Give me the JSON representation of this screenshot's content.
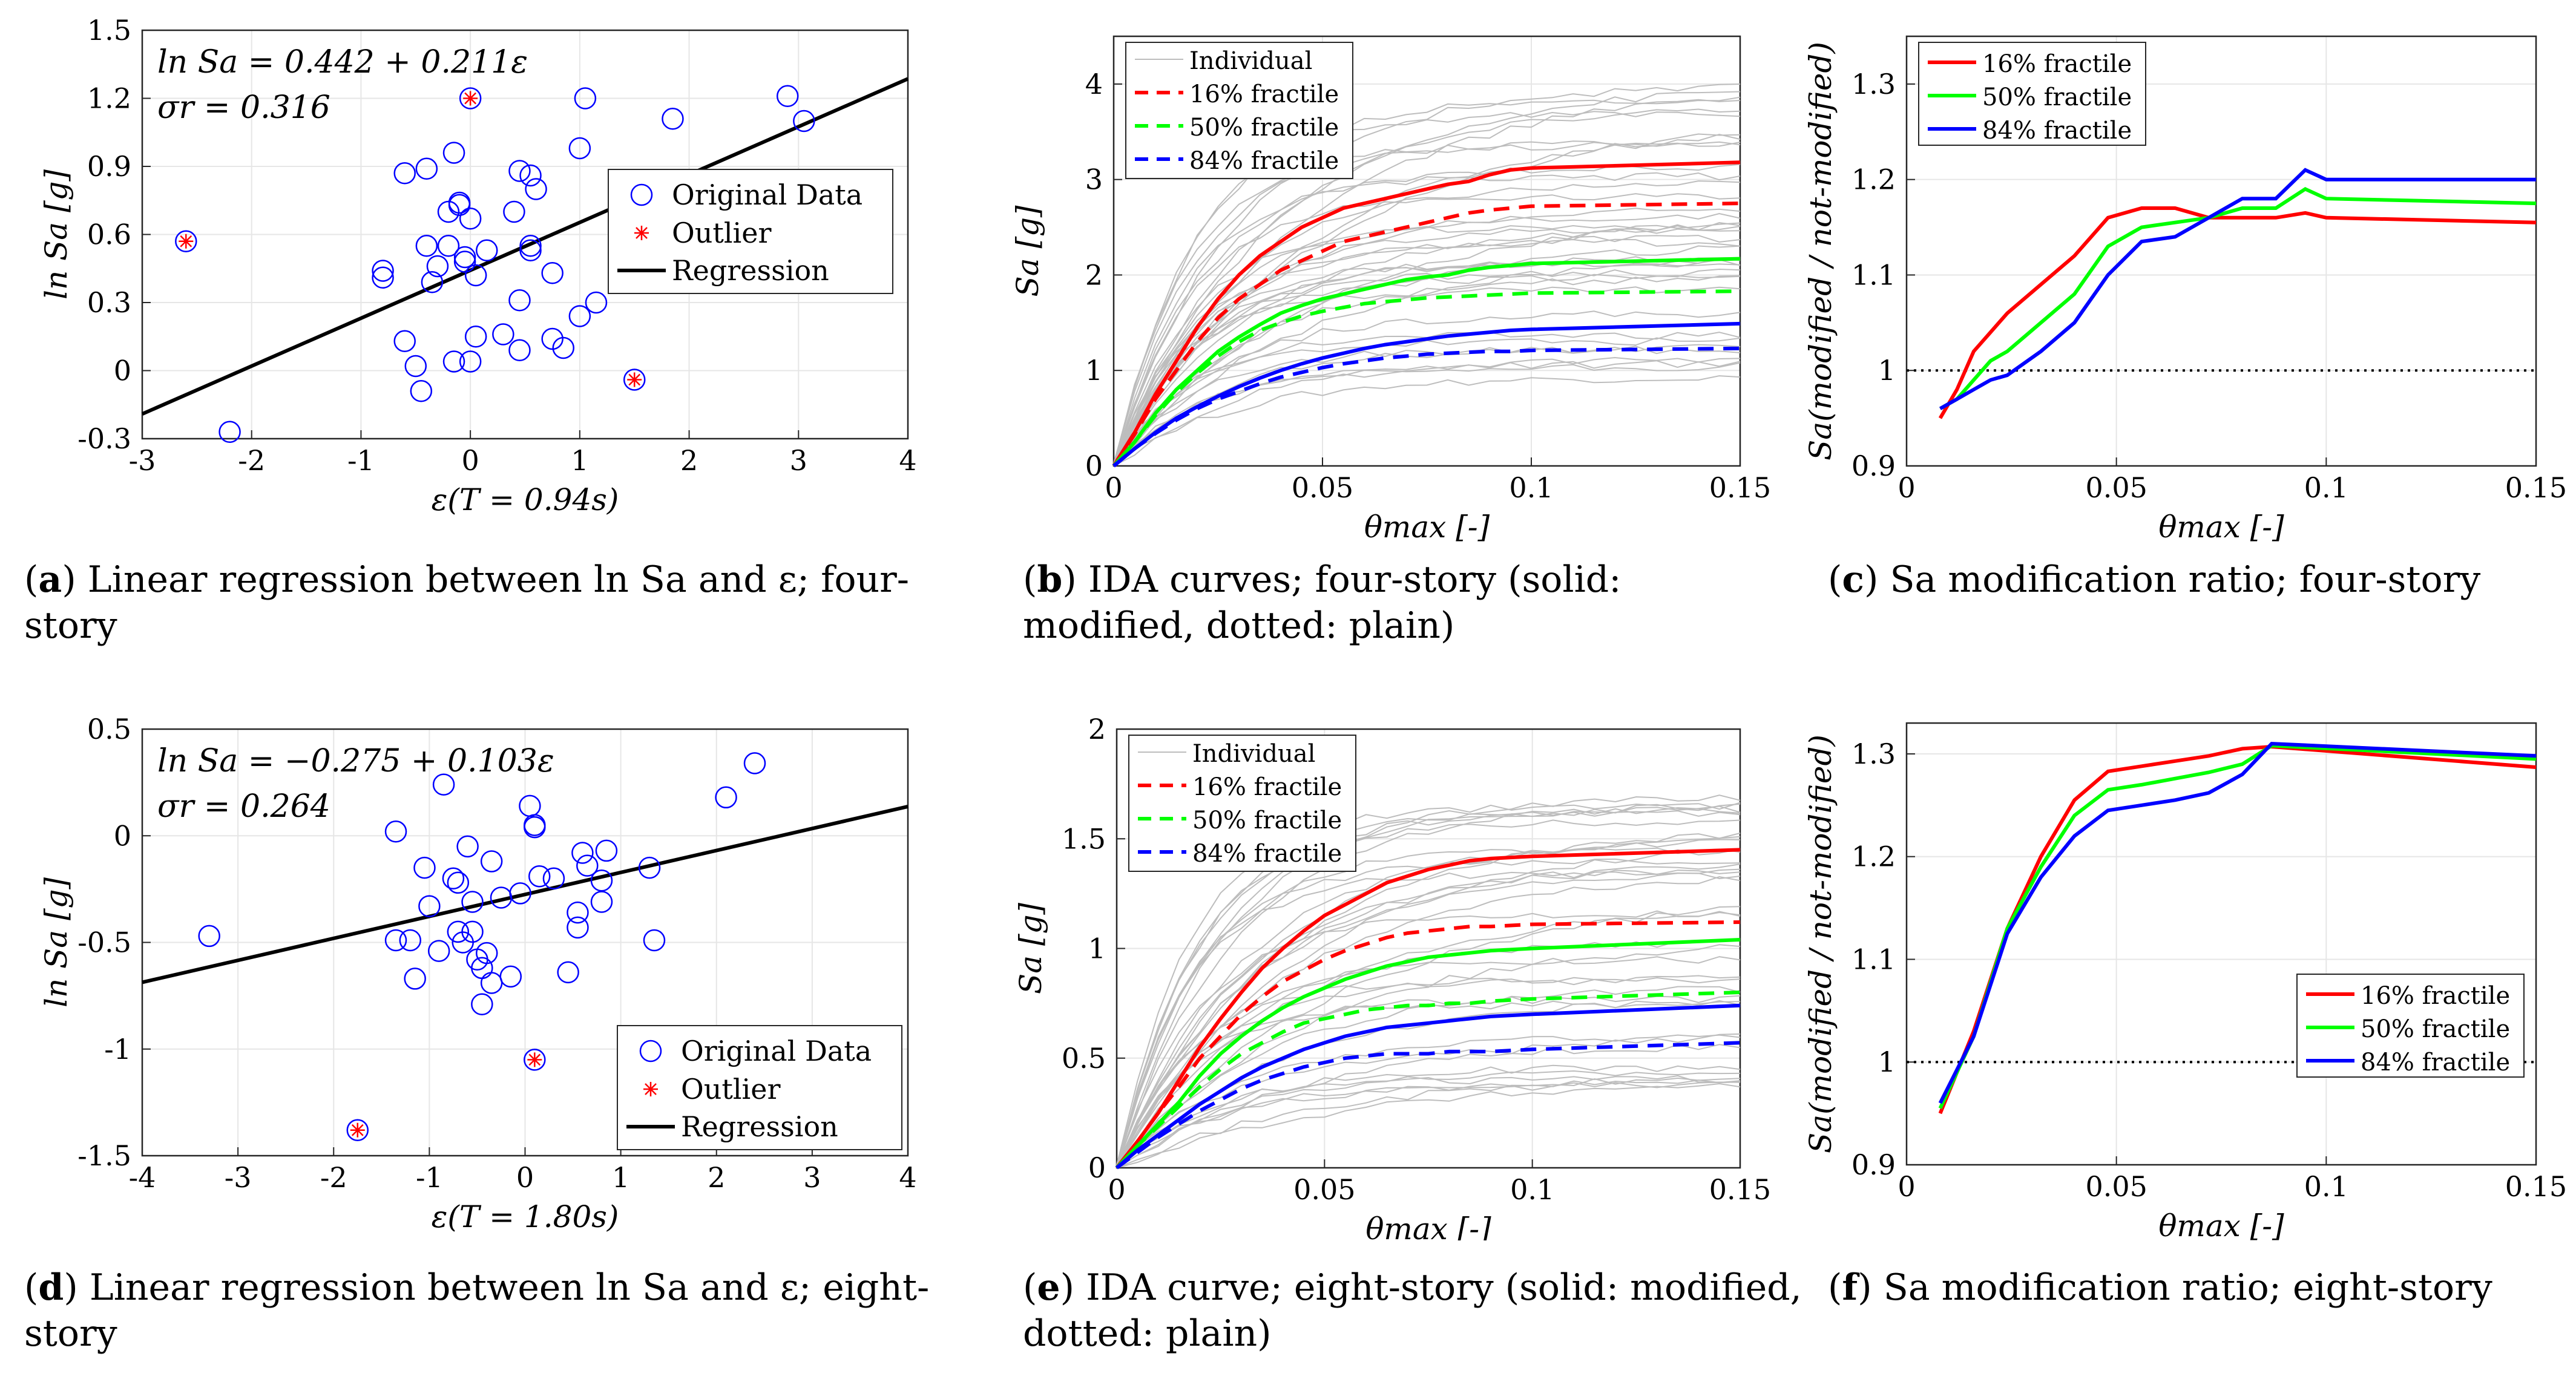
{
  "chart_data": [
    {
      "id": "a",
      "type": "scatter",
      "caption_letter": "a",
      "caption_text": "Linear regression between ln Sa and ε; four-story",
      "xlabel": "ε(T = 0.94s)",
      "ylabel": "ln Sa  [g]",
      "xlim": [
        -3,
        4
      ],
      "ylim": [
        -0.3,
        1.5
      ],
      "xticks": [
        "-3",
        "-2",
        "-1",
        "0",
        "1",
        "2",
        "3",
        "4"
      ],
      "yticks": [
        "-0.3",
        "0",
        "0.3",
        "0.6",
        "0.9",
        "1.2",
        "1.5"
      ],
      "annotations": [
        "ln Sa = 0.442 + 0.211ε",
        "σr = 0.316"
      ],
      "legend": [
        "Original Data",
        "Outlier",
        "Regression"
      ],
      "legend_position": "right",
      "regression": {
        "intercept": 0.442,
        "slope": 0.211
      },
      "points": [
        [
          -2.6,
          0.57
        ],
        [
          -2.2,
          -0.27
        ],
        [
          -0.8,
          0.44
        ],
        [
          -0.8,
          0.41
        ],
        [
          -0.6,
          0.87
        ],
        [
          -0.6,
          0.13
        ],
        [
          -0.5,
          0.02
        ],
        [
          -0.45,
          -0.09
        ],
        [
          -0.4,
          0.89
        ],
        [
          -0.4,
          0.55
        ],
        [
          -0.35,
          0.39
        ],
        [
          -0.3,
          0.46
        ],
        [
          -0.2,
          0.7
        ],
        [
          -0.2,
          0.55
        ],
        [
          -0.15,
          0.04
        ],
        [
          -0.15,
          0.96
        ],
        [
          -0.1,
          0.73
        ],
        [
          -0.1,
          0.74
        ],
        [
          -0.05,
          0.5
        ],
        [
          -0.05,
          0.48
        ],
        [
          0,
          0.67
        ],
        [
          0,
          0.04
        ],
        [
          0.05,
          0.42
        ],
        [
          0.05,
          0.15
        ],
        [
          0.15,
          0.53
        ],
        [
          0.3,
          0.16
        ],
        [
          0.4,
          0.7
        ],
        [
          0.45,
          0.88
        ],
        [
          0.45,
          0.31
        ],
        [
          0.45,
          0.09
        ],
        [
          0.55,
          0.55
        ],
        [
          0.55,
          0.53
        ],
        [
          0.55,
          0.86
        ],
        [
          0.6,
          0.8
        ],
        [
          0.75,
          0.43
        ],
        [
          0.75,
          0.14
        ],
        [
          0.85,
          0.1
        ],
        [
          1.0,
          0.98
        ],
        [
          1.05,
          1.2
        ],
        [
          1.15,
          0.3
        ],
        [
          1.85,
          1.11
        ],
        [
          2.9,
          1.21
        ],
        [
          3.05,
          1.1
        ],
        [
          1.0,
          0.24
        ],
        [
          0,
          1.2
        ],
        [
          1.5,
          -0.04
        ]
      ],
      "outliers": [
        [
          -2.6,
          0.57
        ],
        [
          0,
          1.2
        ],
        [
          1.5,
          -0.04
        ]
      ]
    },
    {
      "id": "b",
      "type": "line",
      "caption_letter": "b",
      "caption_text": "IDA curves; four-story (solid: modified, dotted: plain)",
      "xlabel": "θmax [-]",
      "ylabel": "Sa  [g]",
      "xlim": [
        0,
        0.15
      ],
      "ylim": [
        0,
        4.5
      ],
      "xticks": [
        "0",
        "0.05",
        "0.1",
        "0.15"
      ],
      "yticks": [
        "0",
        "1",
        "2",
        "3",
        "4"
      ],
      "legend": [
        "Individual",
        "16% fractile",
        "50% fractile",
        "84% fractile"
      ],
      "legend_position": "top-left",
      "x": [
        0,
        0.005,
        0.01,
        0.015,
        0.02,
        0.025,
        0.03,
        0.035,
        0.04,
        0.045,
        0.05,
        0.055,
        0.06,
        0.065,
        0.07,
        0.075,
        0.08,
        0.085,
        0.09,
        0.095,
        0.1,
        0.15
      ],
      "series": [
        {
          "name": "16% fractile",
          "style": "solid",
          "color": "#ff0000",
          "values": [
            0,
            0.35,
            0.75,
            1.1,
            1.45,
            1.75,
            2.0,
            2.2,
            2.35,
            2.5,
            2.6,
            2.7,
            2.75,
            2.8,
            2.85,
            2.9,
            2.95,
            2.98,
            3.05,
            3.1,
            3.12,
            3.18
          ]
        },
        {
          "name": "16% fractile",
          "style": "dashed",
          "color": "#ff0000",
          "values": [
            0,
            0.33,
            0.7,
            1.0,
            1.3,
            1.55,
            1.75,
            1.9,
            2.05,
            2.15,
            2.25,
            2.35,
            2.4,
            2.45,
            2.5,
            2.55,
            2.6,
            2.65,
            2.68,
            2.7,
            2.72,
            2.75
          ]
        },
        {
          "name": "50% fractile",
          "style": "solid",
          "color": "#00ff00",
          "values": [
            0,
            0.25,
            0.55,
            0.8,
            1.0,
            1.2,
            1.35,
            1.48,
            1.6,
            1.68,
            1.75,
            1.8,
            1.85,
            1.9,
            1.95,
            1.98,
            2.0,
            2.05,
            2.08,
            2.1,
            2.12,
            2.17
          ]
        },
        {
          "name": "50% fractile",
          "style": "dashed",
          "color": "#00ff00",
          "values": [
            0,
            0.25,
            0.53,
            0.77,
            0.97,
            1.15,
            1.3,
            1.42,
            1.5,
            1.57,
            1.62,
            1.66,
            1.7,
            1.72,
            1.74,
            1.76,
            1.77,
            1.78,
            1.79,
            1.8,
            1.81,
            1.83
          ]
        },
        {
          "name": "84% fractile",
          "style": "solid",
          "color": "#0000ff",
          "values": [
            0,
            0.18,
            0.35,
            0.5,
            0.62,
            0.73,
            0.83,
            0.92,
            1.0,
            1.07,
            1.13,
            1.18,
            1.23,
            1.27,
            1.3,
            1.33,
            1.36,
            1.38,
            1.4,
            1.42,
            1.43,
            1.49
          ]
        },
        {
          "name": "84% fractile",
          "style": "dashed",
          "color": "#0000ff",
          "values": [
            0,
            0.18,
            0.34,
            0.48,
            0.6,
            0.7,
            0.78,
            0.86,
            0.93,
            0.98,
            1.03,
            1.07,
            1.1,
            1.13,
            1.15,
            1.17,
            1.18,
            1.19,
            1.2,
            1.2,
            1.21,
            1.23
          ]
        }
      ]
    },
    {
      "id": "c",
      "type": "line",
      "caption_letter": "c",
      "caption_text": "Sa modification ratio; four-story",
      "xlabel": "θmax [-]",
      "ylabel": "Sa(modified / not-modified)",
      "xlim": [
        0,
        0.15
      ],
      "ylim": [
        0.9,
        1.35
      ],
      "xticks": [
        "0",
        "0.05",
        "0.1",
        "0.15"
      ],
      "yticks": [
        "0.9",
        "1",
        "1.1",
        "1.2",
        "1.3"
      ],
      "reference_line": 1,
      "legend": [
        "16% fractile",
        "50% fractile",
        "84% fractile"
      ],
      "legend_position": "top-left",
      "x": [
        0.008,
        0.012,
        0.016,
        0.02,
        0.024,
        0.032,
        0.04,
        0.048,
        0.056,
        0.064,
        0.072,
        0.08,
        0.088,
        0.095,
        0.1,
        0.15
      ],
      "series": [
        {
          "name": "16% fractile",
          "color": "#ff0000",
          "values": [
            0.95,
            0.98,
            1.02,
            1.04,
            1.06,
            1.09,
            1.12,
            1.16,
            1.17,
            1.17,
            1.16,
            1.16,
            1.16,
            1.165,
            1.16,
            1.155
          ]
        },
        {
          "name": "50% fractile",
          "color": "#00ff00",
          "values": [
            0.96,
            0.97,
            0.99,
            1.01,
            1.02,
            1.05,
            1.08,
            1.13,
            1.15,
            1.155,
            1.16,
            1.17,
            1.17,
            1.19,
            1.18,
            1.175
          ]
        },
        {
          "name": "84% fractile",
          "color": "#0000ff",
          "values": [
            0.96,
            0.97,
            0.98,
            0.99,
            0.995,
            1.02,
            1.05,
            1.1,
            1.135,
            1.14,
            1.16,
            1.18,
            1.18,
            1.21,
            1.2,
            1.2
          ]
        }
      ]
    },
    {
      "id": "d",
      "type": "scatter",
      "caption_letter": "d",
      "caption_text": "Linear regression between ln Sa and ε; eight-story",
      "xlabel": "ε(T = 1.80s)",
      "ylabel": "ln Sa  [g]",
      "xlim": [
        -4,
        4
      ],
      "ylim": [
        -1.5,
        0.5
      ],
      "xticks": [
        "-4",
        "-3",
        "-2",
        "-1",
        "0",
        "1",
        "2",
        "3",
        "4"
      ],
      "yticks": [
        "-1.5",
        "-1",
        "-0.5",
        "0",
        "0.5"
      ],
      "annotations": [
        "ln Sa = −0.275 + 0.103ε",
        "σr = 0.264"
      ],
      "legend": [
        "Original Data",
        "Outlier",
        "Regression"
      ],
      "legend_position": "bottom-right",
      "regression": {
        "intercept": -0.275,
        "slope": 0.103
      },
      "points": [
        [
          -3.3,
          -0.47
        ],
        [
          -1.75,
          -1.38
        ],
        [
          -1.35,
          0.02
        ],
        [
          -1.35,
          -0.49
        ],
        [
          -1.2,
          -0.49
        ],
        [
          -1.15,
          -0.67
        ],
        [
          -1.05,
          -0.15
        ],
        [
          -1.0,
          -0.33
        ],
        [
          -0.9,
          -0.54
        ],
        [
          -0.85,
          0.24
        ],
        [
          -0.75,
          -0.2
        ],
        [
          -0.7,
          -0.45
        ],
        [
          -0.7,
          -0.22
        ],
        [
          -0.65,
          -0.5
        ],
        [
          -0.6,
          -0.05
        ],
        [
          -0.55,
          -0.31
        ],
        [
          -0.55,
          -0.45
        ],
        [
          -0.5,
          -0.58
        ],
        [
          -0.45,
          -0.62
        ],
        [
          -0.45,
          -0.79
        ],
        [
          -0.4,
          -0.55
        ],
        [
          -0.35,
          -0.69
        ],
        [
          -0.35,
          -0.12
        ],
        [
          -0.25,
          -0.29
        ],
        [
          -0.15,
          -0.66
        ],
        [
          -0.05,
          -0.27
        ],
        [
          0.05,
          0.14
        ],
        [
          0.1,
          0.05
        ],
        [
          0.1,
          0.04
        ],
        [
          0.15,
          -0.19
        ],
        [
          0.1,
          -1.05
        ],
        [
          0.3,
          -0.2
        ],
        [
          0.45,
          -0.64
        ],
        [
          0.55,
          -0.43
        ],
        [
          0.55,
          -0.36
        ],
        [
          0.6,
          -0.08
        ],
        [
          0.65,
          -0.14
        ],
        [
          0.8,
          -0.21
        ],
        [
          0.8,
          -0.31
        ],
        [
          0.85,
          -0.07
        ],
        [
          1.3,
          -0.15
        ],
        [
          1.35,
          -0.49
        ],
        [
          2.1,
          0.18
        ],
        [
          2.4,
          0.34
        ]
      ],
      "outliers": [
        [
          -1.75,
          -1.38
        ],
        [
          0.1,
          -1.05
        ]
      ]
    },
    {
      "id": "e",
      "type": "line",
      "caption_letter": "e",
      "caption_text": "IDA curve; eight-story (solid: modified, dotted: plain)",
      "xlabel": "θmax [-]",
      "ylabel": "Sa  [g]",
      "xlim": [
        0,
        0.15
      ],
      "ylim": [
        0,
        2
      ],
      "xticks": [
        "0",
        "0.05",
        "0.1",
        "0.15"
      ],
      "yticks": [
        "0",
        "0.5",
        "1",
        "1.5",
        "2"
      ],
      "legend": [
        "Individual",
        "16% fractile",
        "50% fractile",
        "84% fractile"
      ],
      "legend_position": "top-left",
      "x": [
        0,
        0.005,
        0.01,
        0.015,
        0.02,
        0.025,
        0.03,
        0.035,
        0.04,
        0.045,
        0.05,
        0.055,
        0.06,
        0.065,
        0.07,
        0.075,
        0.08,
        0.085,
        0.09,
        0.1,
        0.15
      ],
      "series": [
        {
          "name": "16% fractile",
          "style": "solid",
          "color": "#ff0000",
          "values": [
            0,
            0.12,
            0.25,
            0.4,
            0.55,
            0.68,
            0.8,
            0.91,
            1.0,
            1.08,
            1.15,
            1.2,
            1.25,
            1.3,
            1.33,
            1.36,
            1.38,
            1.4,
            1.41,
            1.42,
            1.45
          ]
        },
        {
          "name": "16% fractile",
          "style": "dashed",
          "color": "#ff0000",
          "values": [
            0,
            0.12,
            0.25,
            0.37,
            0.5,
            0.6,
            0.7,
            0.78,
            0.85,
            0.9,
            0.95,
            0.99,
            1.02,
            1.05,
            1.07,
            1.08,
            1.09,
            1.1,
            1.1,
            1.11,
            1.12
          ]
        },
        {
          "name": "50% fractile",
          "style": "solid",
          "color": "#00ff00",
          "values": [
            0,
            0.1,
            0.2,
            0.3,
            0.42,
            0.52,
            0.6,
            0.67,
            0.73,
            0.78,
            0.82,
            0.86,
            0.89,
            0.92,
            0.94,
            0.96,
            0.97,
            0.98,
            0.99,
            1.0,
            1.04
          ]
        },
        {
          "name": "50% fractile",
          "style": "dashed",
          "color": "#00ff00",
          "values": [
            0,
            0.1,
            0.19,
            0.28,
            0.37,
            0.45,
            0.52,
            0.57,
            0.62,
            0.66,
            0.68,
            0.7,
            0.72,
            0.73,
            0.74,
            0.74,
            0.75,
            0.75,
            0.76,
            0.77,
            0.8
          ]
        },
        {
          "name": "84% fractile",
          "style": "solid",
          "color": "#0000ff",
          "values": [
            0,
            0.08,
            0.15,
            0.22,
            0.29,
            0.35,
            0.41,
            0.46,
            0.5,
            0.54,
            0.57,
            0.6,
            0.62,
            0.64,
            0.65,
            0.66,
            0.67,
            0.68,
            0.69,
            0.7,
            0.74
          ]
        },
        {
          "name": "84% fractile",
          "style": "dashed",
          "color": "#0000ff",
          "values": [
            0,
            0.07,
            0.14,
            0.2,
            0.26,
            0.31,
            0.36,
            0.4,
            0.43,
            0.46,
            0.48,
            0.5,
            0.51,
            0.52,
            0.52,
            0.52,
            0.53,
            0.53,
            0.53,
            0.54,
            0.57
          ]
        }
      ]
    },
    {
      "id": "f",
      "type": "line",
      "caption_letter": "f",
      "caption_text": "Sa modification ratio; eight-story",
      "xlabel": "θmax [-]",
      "ylabel": "Sa(modified / not-modified)",
      "xlim": [
        0,
        0.15
      ],
      "ylim": [
        0.9,
        1.33
      ],
      "xticks": [
        "0",
        "0.05",
        "0.1",
        "0.15"
      ],
      "yticks": [
        "0.9",
        "1",
        "1.1",
        "1.2",
        "1.3"
      ],
      "reference_line": 1,
      "legend": [
        "16% fractile",
        "50% fractile",
        "84% fractile"
      ],
      "legend_position": "right",
      "x": [
        0.008,
        0.016,
        0.024,
        0.032,
        0.04,
        0.048,
        0.056,
        0.064,
        0.072,
        0.08,
        0.087,
        0.15
      ],
      "series": [
        {
          "name": "16% fractile",
          "color": "#ff0000",
          "values": [
            0.95,
            1.03,
            1.13,
            1.2,
            1.255,
            1.283,
            1.288,
            1.293,
            1.298,
            1.305,
            1.307,
            1.287
          ]
        },
        {
          "name": "50% fractile",
          "color": "#00ff00",
          "values": [
            0.955,
            1.025,
            1.13,
            1.19,
            1.24,
            1.265,
            1.27,
            1.276,
            1.282,
            1.29,
            1.308,
            1.295
          ]
        },
        {
          "name": "84% fractile",
          "color": "#0000ff",
          "values": [
            0.96,
            1.025,
            1.125,
            1.18,
            1.22,
            1.245,
            1.25,
            1.255,
            1.262,
            1.28,
            1.31,
            1.298
          ]
        }
      ]
    }
  ]
}
